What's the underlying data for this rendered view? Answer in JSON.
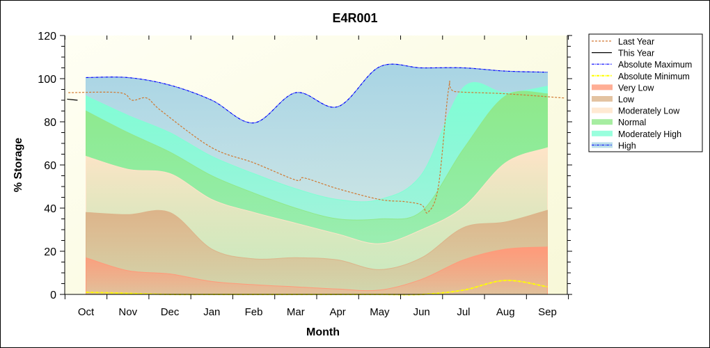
{
  "chart_data": {
    "type": "area",
    "title": "E4R001",
    "xlabel": "Month",
    "ylabel": "% Storage",
    "ylim": [
      0,
      120
    ],
    "yticks": [
      0,
      20,
      40,
      60,
      80,
      100,
      120
    ],
    "categories": [
      "Oct",
      "Nov",
      "Dec",
      "Jan",
      "Feb",
      "Mar",
      "Apr",
      "May",
      "Jun",
      "Jul",
      "Aug",
      "Sep"
    ],
    "bands": [
      {
        "name": "Very Low",
        "color": "#ff9a7a",
        "upper": [
          17,
          11,
          9.5,
          6,
          4.5,
          3.5,
          2.5,
          2,
          7,
          16,
          21,
          22
        ]
      },
      {
        "name": "Low",
        "color": "#dcb48a",
        "upper": [
          38,
          37,
          38,
          21,
          16.5,
          17,
          16,
          11.5,
          17,
          31,
          33.6,
          39
        ]
      },
      {
        "name": "Moderately Low",
        "color": "#ffe4c8",
        "upper": [
          64,
          58,
          56,
          44,
          38,
          33,
          28,
          23.5,
          30,
          40.5,
          61,
          68
        ]
      },
      {
        "name": "Normal",
        "color": "#90e88a",
        "upper": [
          85,
          75,
          66,
          55,
          47,
          40,
          35,
          35,
          38.5,
          67.5,
          92,
          93
        ]
      },
      {
        "name": "Moderately High",
        "color": "#80ffd4",
        "upper": [
          92,
          83,
          75,
          64,
          56,
          49,
          44,
          44,
          55.6,
          96,
          93.5,
          96.5
        ]
      },
      {
        "name": "High",
        "color": "#a8d4e4",
        "upper": [
          100.5,
          100.5,
          97,
          90,
          79.5,
          93.5,
          87,
          105.5,
          105,
          105,
          103.5,
          103
        ]
      }
    ],
    "series": [
      {
        "name": "Last Year",
        "color": "#d07830",
        "style": "dash",
        "x": [
          -0.42,
          0.8,
          1.1,
          1.45,
          1.8,
          3,
          4,
          5,
          5.2,
          6,
          7,
          7.6,
          8,
          8.15,
          8.4,
          8.65,
          8.8,
          10,
          11.42
        ],
        "y": [
          93.5,
          93.5,
          90,
          91,
          85,
          68,
          61,
          53,
          54,
          49,
          44,
          43,
          41.5,
          38,
          50,
          96,
          94,
          93,
          91
        ]
      },
      {
        "name": "This Year",
        "color": "#000000",
        "style": "solid",
        "x": [
          -0.45,
          -0.2
        ],
        "y": [
          90.5,
          90
        ]
      },
      {
        "name": "Absolute Maximum",
        "color": "#0000ff",
        "style": "dashdot",
        "x": [
          0,
          1,
          2,
          3,
          4,
          5,
          6,
          7,
          8,
          9,
          10,
          11
        ],
        "y": [
          100.5,
          100.5,
          97,
          90,
          79.5,
          93.5,
          87,
          105.5,
          105,
          105,
          103.5,
          103
        ]
      },
      {
        "name": "Absolute Minimum",
        "color": "#ffff00",
        "style": "dashdot",
        "x": [
          0,
          1,
          2,
          3,
          4,
          5,
          6,
          7,
          8,
          9,
          10,
          11
        ],
        "y": [
          1,
          0.5,
          0,
          0,
          0,
          0,
          0,
          0,
          0,
          2,
          6.5,
          3.5
        ]
      }
    ],
    "legend": [
      "Last Year",
      "This Year",
      "Absolute Maximum",
      "Absolute Minimum",
      "Very Low",
      "Low",
      "Moderately Low",
      "Normal",
      "Moderately High",
      "High"
    ],
    "legend_position": "right"
  }
}
